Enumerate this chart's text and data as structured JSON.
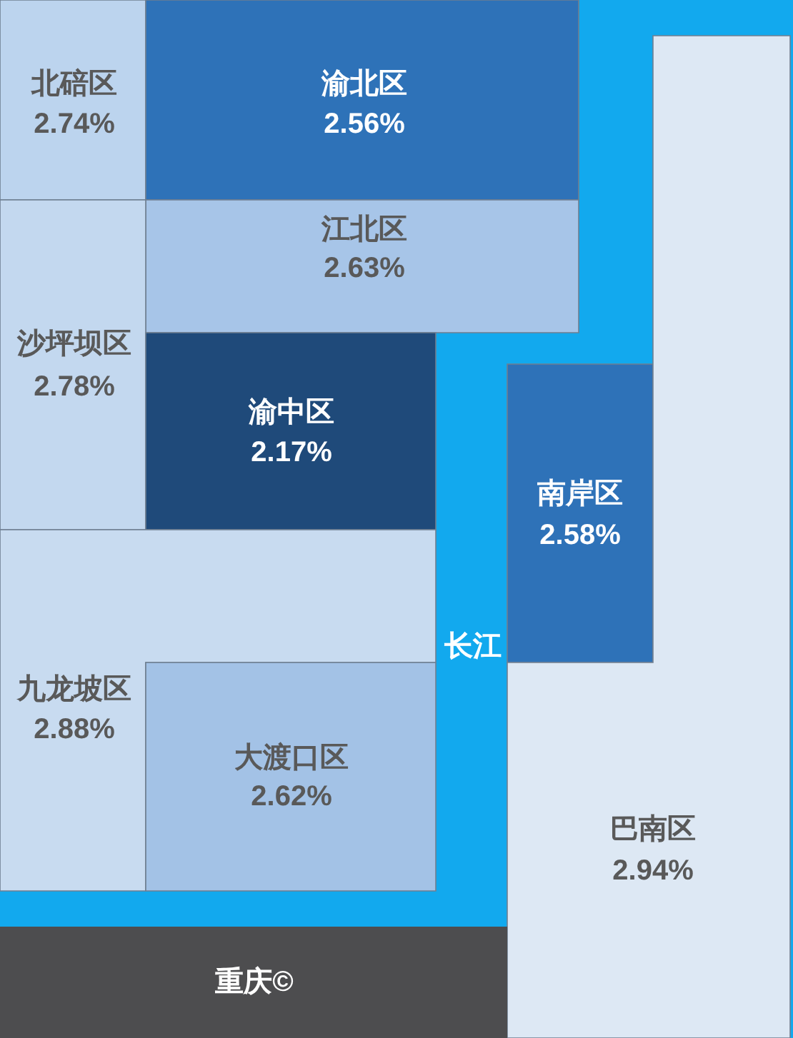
{
  "chart_data": {
    "type": "other",
    "title": "重庆©",
    "categories": [
      "北碚区",
      "渝北区",
      "江北区",
      "沙坪坝区",
      "渝中区",
      "南岸区",
      "九龙坡区",
      "大渡口区",
      "巴南区"
    ],
    "values": [
      2.74,
      2.56,
      2.63,
      2.78,
      2.17,
      2.58,
      2.88,
      2.62,
      2.94
    ],
    "value_labels": [
      "2.74%",
      "2.56%",
      "2.63%",
      "2.78%",
      "2.17%",
      "2.58%",
      "2.88%",
      "2.62%",
      "2.94%"
    ],
    "colors": [
      "#bcd4ee",
      "#2e72b8",
      "#a7c5e8",
      "#c3d8ef",
      "#1f4a7a",
      "#2e72b8",
      "#c8dbf0",
      "#a3c2e6",
      "#dde8f4"
    ],
    "annotations": [
      "长江"
    ]
  }
}
